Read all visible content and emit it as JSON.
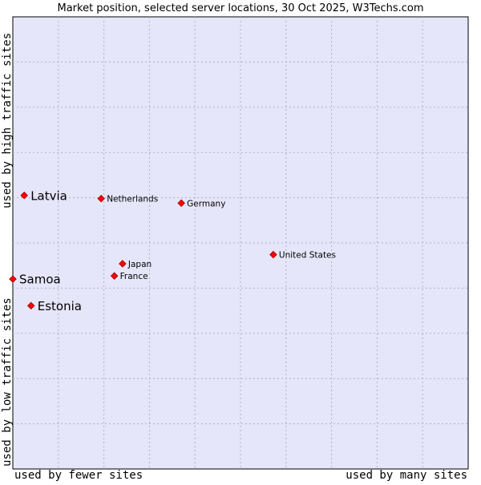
{
  "chart_data": {
    "type": "scatter",
    "title": "Market position, selected server locations, 30 Oct 2025, W3Techs.com",
    "xlabel_left": "used by fewer sites",
    "xlabel_right": "used by many sites",
    "ylabel_top": "used by high traffic sites",
    "ylabel_bottom": "used by low traffic sites",
    "grid": true,
    "xlim": [
      0,
      100
    ],
    "ylim": [
      0,
      100
    ],
    "colors": {
      "plot_bg": "#e6e6fa",
      "grid": "#b0b0c8",
      "point": "#ff0000",
      "point_outline": "#a00000",
      "text": "#000000"
    },
    "points": [
      {
        "name": "Latvia",
        "x": 2.5,
        "y": 60.5,
        "highlight": true
      },
      {
        "name": "Netherlands",
        "x": 19.4,
        "y": 59.8,
        "highlight": false
      },
      {
        "name": "Germany",
        "x": 37.0,
        "y": 58.8,
        "highlight": false
      },
      {
        "name": "United States",
        "x": 57.2,
        "y": 47.4,
        "highlight": false
      },
      {
        "name": "Japan",
        "x": 24.1,
        "y": 45.4,
        "highlight": false
      },
      {
        "name": "France",
        "x": 22.3,
        "y": 42.7,
        "highlight": false
      },
      {
        "name": "Samoa",
        "x": 0.0,
        "y": 42.0,
        "highlight": true
      },
      {
        "name": "Estonia",
        "x": 4.0,
        "y": 36.1,
        "highlight": true
      }
    ]
  }
}
